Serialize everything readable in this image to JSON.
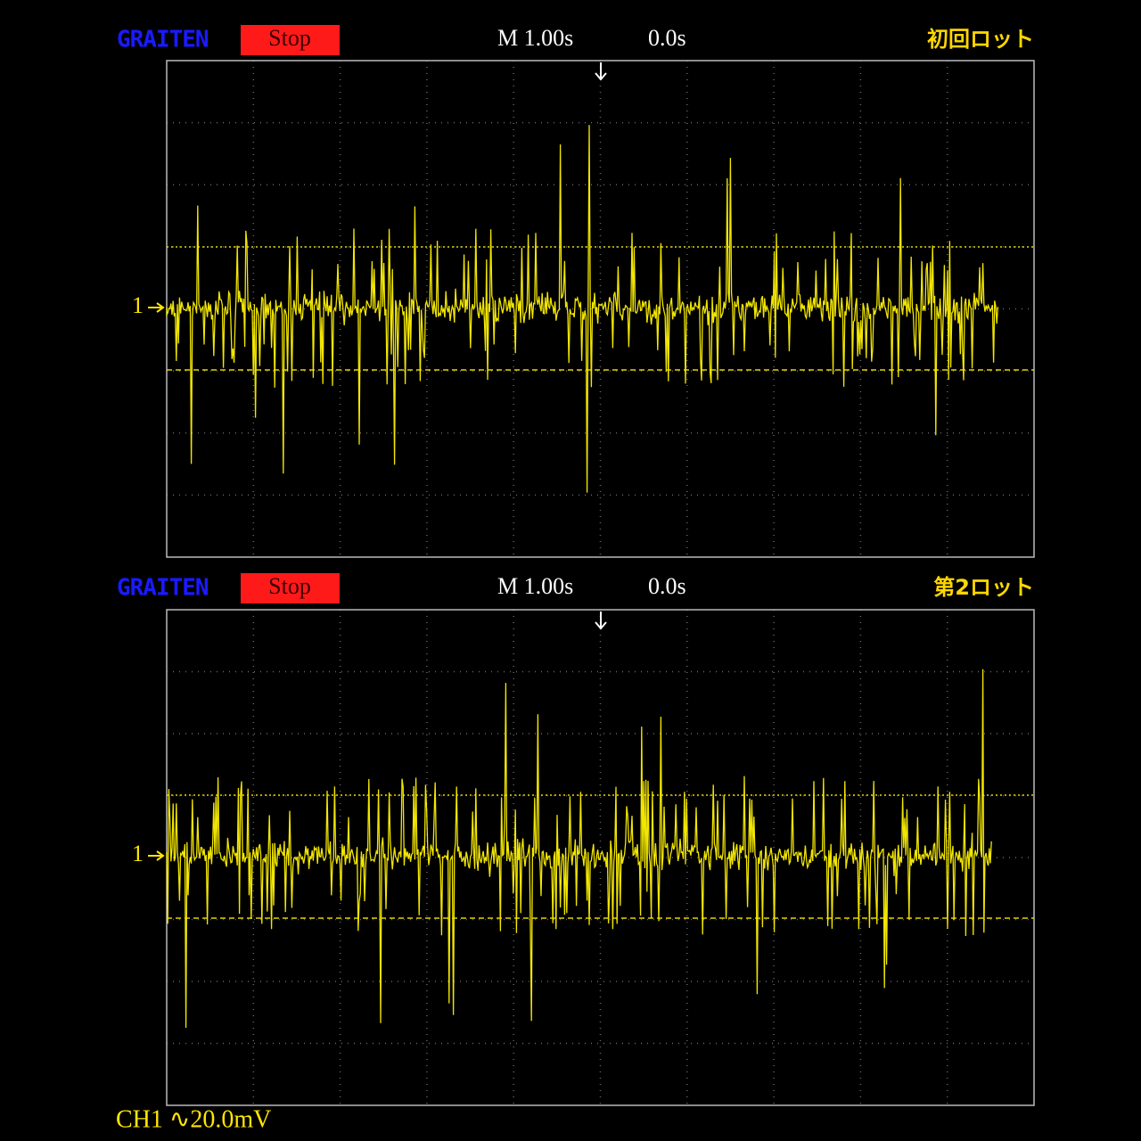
{
  "panels": [
    {
      "brand": "GRAITEN",
      "status": "Stop",
      "timebase": "M 1.00s",
      "trigger_position": "0.0s",
      "label": "初回ロット",
      "channel_marker": "1"
    },
    {
      "brand": "GRAITEN",
      "status": "Stop",
      "timebase": "M 1.00s",
      "trigger_position": "0.0s",
      "label": "第2ロット",
      "channel_marker": "1"
    }
  ],
  "footer": {
    "channel_scale": "CH1 ∿20.0mV"
  }
}
